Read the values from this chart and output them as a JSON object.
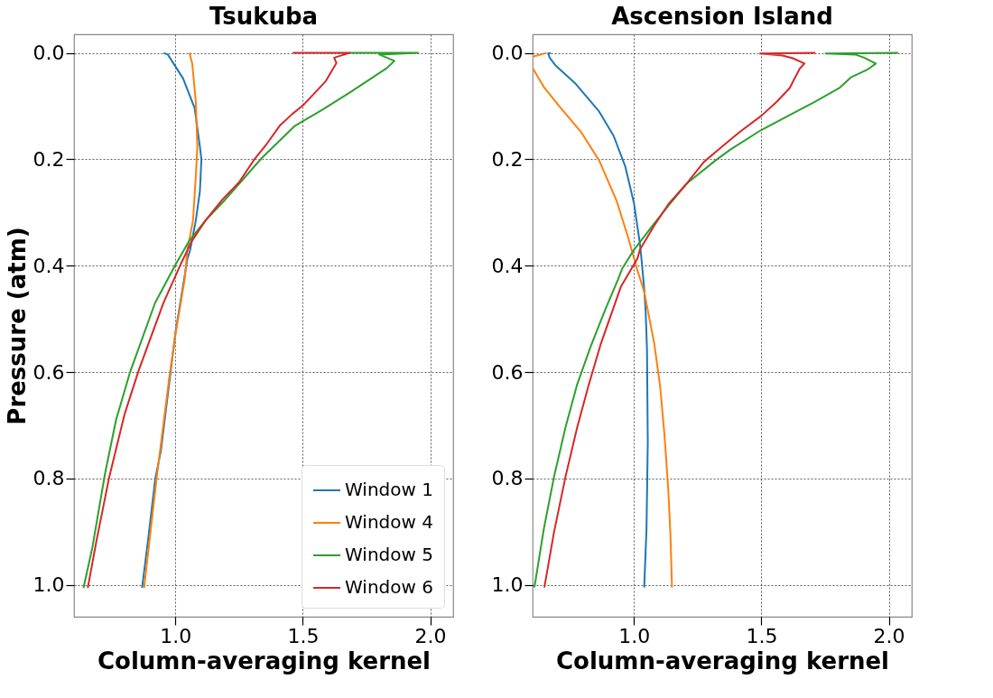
{
  "chart_data": [
    {
      "type": "line",
      "title": "Tsukuba",
      "xlabel": "Column-averaging kernel",
      "ylabel": "Pressure (atm)",
      "xlim": [
        0.602,
        2.09
      ],
      "ylim": [
        1.06,
        -0.035
      ],
      "xticks": [
        {
          "value": 1.0,
          "label": "1.0"
        },
        {
          "value": 1.5,
          "label": "1.5"
        },
        {
          "value": 2.0,
          "label": "2.0"
        }
      ],
      "yticks": [
        {
          "value": 0.0,
          "label": "0.0"
        },
        {
          "value": 0.2,
          "label": "0.2"
        },
        {
          "value": 0.4,
          "label": "0.4"
        },
        {
          "value": 0.6,
          "label": "0.6"
        },
        {
          "value": 0.8,
          "label": "0.8"
        },
        {
          "value": 1.0,
          "label": "1.0"
        }
      ],
      "grid": true,
      "legend": "bottom right",
      "line_style": "solid",
      "marker": "none",
      "series": [
        {
          "name": "Window 1",
          "color": "#1f77b4",
          "x": [
            0.954,
            0.97,
            1.03,
            1.075,
            1.096,
            1.102,
            1.096,
            1.08,
            1.058,
            1.047,
            1.0,
            0.981,
            0.943,
            0.921,
            0.893,
            0.869
          ],
          "values": [
            0.0,
            0.003,
            0.048,
            0.103,
            0.176,
            0.2,
            0.26,
            0.315,
            0.37,
            0.387,
            0.526,
            0.6,
            0.748,
            0.8,
            0.914,
            1.006
          ]
        },
        {
          "name": "Window 4",
          "color": "#ff7f0e",
          "x": [
            1.055,
            1.066,
            1.08,
            1.086,
            1.08,
            1.069,
            1.047,
            1.036,
            1.0,
            0.976,
            0.926,
            0.899,
            0.877
          ],
          "values": [
            0.0,
            0.02,
            0.092,
            0.176,
            0.231,
            0.315,
            0.37,
            0.426,
            0.53,
            0.61,
            0.8,
            0.914,
            1.006
          ]
        },
        {
          "name": "Window 5",
          "color": "#2ca02c",
          "x": [
            1.683,
            1.952,
            1.8,
            1.859,
            1.831,
            1.689,
            1.579,
            1.469,
            1.338,
            1.195,
            1.118,
            1.053,
            0.998,
            0.92,
            0.822,
            0.767,
            0.724,
            0.674,
            0.639
          ],
          "values": [
            0.0,
            0.0,
            0.003,
            0.015,
            0.028,
            0.073,
            0.106,
            0.137,
            0.198,
            0.276,
            0.315,
            0.354,
            0.4,
            0.47,
            0.6,
            0.69,
            0.79,
            0.93,
            1.006
          ]
        },
        {
          "name": "Window 6",
          "color": "#d62728",
          "x": [
            1.46,
            1.683,
            1.623,
            1.632,
            1.59,
            1.502,
            1.458,
            1.409,
            1.36,
            1.31,
            1.25,
            1.184,
            1.118,
            1.064,
            1.02,
            0.953,
            0.855,
            0.8,
            0.739,
            0.689,
            0.656
          ],
          "values": [
            0.0,
            0.0,
            0.009,
            0.019,
            0.053,
            0.098,
            0.115,
            0.137,
            0.17,
            0.2,
            0.243,
            0.276,
            0.315,
            0.354,
            0.398,
            0.47,
            0.598,
            0.68,
            0.8,
            0.92,
            1.006
          ]
        }
      ]
    },
    {
      "type": "line",
      "title": "Ascension Island",
      "xlabel": "Column-averaging kernel",
      "xlim": [
        0.602,
        2.09
      ],
      "ylim": [
        1.06,
        -0.035
      ],
      "xticks": [
        {
          "value": 1.0,
          "label": "1.0"
        },
        {
          "value": 1.5,
          "label": "1.5"
        },
        {
          "value": 2.0,
          "label": "2.0"
        }
      ],
      "yticks": [
        {
          "value": 0.0,
          "label": "0.0"
        },
        {
          "value": 0.2,
          "label": "0.2"
        },
        {
          "value": 0.4,
          "label": "0.4"
        },
        {
          "value": 0.6,
          "label": "0.6"
        },
        {
          "value": 0.8,
          "label": "0.8"
        },
        {
          "value": 1.0,
          "label": "1.0"
        }
      ],
      "grid": true,
      "line_style": "solid",
      "marker": "none",
      "series": [
        {
          "color": "#1f77b4",
          "x": [
            0.674,
            0.663,
            0.669,
            0.691,
            0.771,
            0.863,
            0.92,
            0.966,
            1.0,
            1.023,
            1.029,
            1.04,
            1.046,
            1.051,
            1.054,
            1.049,
            1.04
          ],
          "values": [
            0.0,
            0.001,
            0.009,
            0.023,
            0.058,
            0.11,
            0.156,
            0.214,
            0.283,
            0.358,
            0.386,
            0.443,
            0.49,
            0.559,
            0.733,
            0.895,
            1.005
          ]
        },
        {
          "color": "#ff7f0e",
          "x": [
            0.657,
            0.603,
            null,
            0.603,
            0.646,
            0.703,
            0.794,
            0.863,
            0.931,
            0.977,
            1.011,
            1.04,
            1.08,
            1.103,
            1.12,
            1.135,
            1.143,
            1.149
          ],
          "values": [
            0.0,
            0.007,
            null,
            0.029,
            0.064,
            0.098,
            0.15,
            0.202,
            0.277,
            0.347,
            0.405,
            0.449,
            0.548,
            0.629,
            0.721,
            0.826,
            0.907,
            1.005
          ]
        },
        {
          "color": "#2ca02c",
          "x": [
            2.037,
            1.752,
            1.869,
            1.903,
            1.949,
            1.914,
            1.851,
            1.806,
            1.709,
            1.606,
            1.499,
            1.377,
            1.32,
            1.206,
            1.137,
            1.069,
            1.0,
            0.954,
            0.937,
            0.886,
            0.829,
            0.777,
            0.731,
            0.686,
            0.646,
            0.609
          ],
          "values": [
            0.0,
            0.001,
            0.003,
            0.009,
            0.02,
            0.032,
            0.046,
            0.066,
            0.092,
            0.118,
            0.145,
            0.182,
            0.202,
            0.246,
            0.286,
            0.327,
            0.37,
            0.405,
            0.426,
            0.484,
            0.553,
            0.623,
            0.704,
            0.797,
            0.895,
            1.005
          ]
        },
        {
          "color": "#d62728",
          "x": [
            1.712,
            1.495,
            1.583,
            1.623,
            1.669,
            1.651,
            1.629,
            1.611,
            1.56,
            1.5,
            1.411,
            1.331,
            1.274,
            1.206,
            1.137,
            1.08,
            1.023,
            1.014,
            0.949,
            0.869,
            0.823,
            0.777,
            0.731,
            0.686,
            0.648
          ],
          "values": [
            0.0,
            0.001,
            0.005,
            0.01,
            0.02,
            0.029,
            0.049,
            0.066,
            0.092,
            0.118,
            0.15,
            0.182,
            0.205,
            0.246,
            0.283,
            0.324,
            0.37,
            0.386,
            0.439,
            0.548,
            0.623,
            0.704,
            0.797,
            0.901,
            1.005
          ]
        }
      ]
    }
  ]
}
